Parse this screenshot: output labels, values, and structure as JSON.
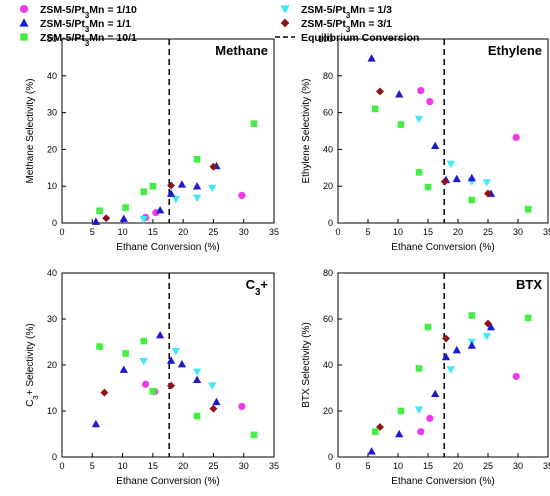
{
  "legend": {
    "entries": [
      {
        "key": "s1",
        "text": "ZSM-5/Pt₃Mn = 1/10",
        "marker": "circle"
      },
      {
        "key": "s2",
        "text": "ZSM-5/Pt₃Mn = 1/3",
        "marker": "triangle-down"
      },
      {
        "key": "s3",
        "text": "ZSM-5/Pt₃Mn = 1/1",
        "marker": "triangle-up"
      },
      {
        "key": "s4",
        "text": "ZSM-5/Pt₃Mn = 3/1",
        "marker": "diamond"
      },
      {
        "key": "s5",
        "text": "ZSM-5/Pt₃Mn = 10/1",
        "marker": "square"
      },
      {
        "key": "eq",
        "text": "Equilibrium Conversion",
        "marker": "dashed-line"
      }
    ]
  },
  "colors": {
    "s1": "#f038e8",
    "s2": "#3ee8f5",
    "s3": "#1a1ad0",
    "s4": "#8b1418",
    "s5": "#44ee44",
    "eq": "#000000"
  },
  "chart_data": [
    {
      "type": "scatter",
      "id": "methane",
      "title": "Methane",
      "xlabel": "Ethane Conversion (%)",
      "ylabel": "Methane Selectivity (%)",
      "xlim": [
        0,
        35
      ],
      "ylim": [
        0,
        50
      ],
      "xticks": [
        0,
        5,
        10,
        15,
        20,
        25,
        30,
        35
      ],
      "yticks": [
        0,
        10,
        20,
        30,
        40,
        50
      ],
      "equilibrium_x": 17.7,
      "series": [
        {
          "key": "s1",
          "points": [
            [
              13.8,
              1.5
            ],
            [
              15.5,
              2.8
            ],
            [
              29.7,
              7.5
            ]
          ]
        },
        {
          "key": "s2",
          "points": [
            [
              13.5,
              1.0
            ],
            [
              18.8,
              6.5
            ],
            [
              22.3,
              6.8
            ],
            [
              24.8,
              9.5
            ]
          ]
        },
        {
          "key": "s3",
          "points": [
            [
              5.6,
              0.4
            ],
            [
              10.2,
              1.2
            ],
            [
              16.2,
              3.5
            ],
            [
              18.0,
              8.0
            ],
            [
              19.8,
              10.5
            ],
            [
              22.3,
              10.0
            ],
            [
              25.5,
              15.5
            ]
          ]
        },
        {
          "key": "s4",
          "points": [
            [
              7.3,
              1.3
            ],
            [
              18.0,
              10.2
            ],
            [
              25.0,
              15.3
            ]
          ]
        },
        {
          "key": "s5",
          "points": [
            [
              6.2,
              3.3
            ],
            [
              10.5,
              4.2
            ],
            [
              13.5,
              8.5
            ],
            [
              15.0,
              10.0
            ],
            [
              22.3,
              17.3
            ],
            [
              31.7,
              27.0
            ]
          ]
        }
      ]
    },
    {
      "type": "scatter",
      "id": "ethylene",
      "title": "Ethylene",
      "xlabel": "Ethane Conversion (%)",
      "ylabel": "Ethylene Selectivity (%)",
      "xlim": [
        0,
        35
      ],
      "ylim": [
        0,
        100
      ],
      "xticks": [
        0,
        5,
        10,
        15,
        20,
        25,
        30,
        35
      ],
      "yticks": [
        0,
        20,
        40,
        60,
        80,
        100
      ],
      "equilibrium_x": 17.7,
      "series": [
        {
          "key": "s1",
          "points": [
            [
              13.8,
              72.0
            ],
            [
              15.3,
              66.0
            ],
            [
              29.7,
              46.5
            ]
          ]
        },
        {
          "key": "s2",
          "points": [
            [
              13.5,
              56.5
            ],
            [
              18.8,
              32.0
            ],
            [
              22.3,
              22.5
            ],
            [
              24.8,
              22.0
            ]
          ]
        },
        {
          "key": "s3",
          "points": [
            [
              5.6,
              89.5
            ],
            [
              10.2,
              70.0
            ],
            [
              16.2,
              42.0
            ],
            [
              18.0,
              23.5
            ],
            [
              19.8,
              24.0
            ],
            [
              22.3,
              24.5
            ],
            [
              25.5,
              16.0
            ]
          ]
        },
        {
          "key": "s4",
          "points": [
            [
              7.0,
              71.5
            ],
            [
              17.8,
              22.5
            ],
            [
              25.0,
              16.0
            ]
          ]
        },
        {
          "key": "s5",
          "points": [
            [
              6.2,
              62.0
            ],
            [
              10.5,
              53.5
            ],
            [
              13.5,
              27.5
            ],
            [
              15.0,
              19.5
            ],
            [
              22.3,
              12.5
            ],
            [
              31.7,
              7.5
            ]
          ]
        }
      ]
    },
    {
      "type": "scatter",
      "id": "c3plus",
      "title": "C₃+",
      "xlabel": "Ethane Conversion (%)",
      "ylabel": "C₃+ Selectivity (%)",
      "xlim": [
        0,
        35
      ],
      "ylim": [
        0,
        40
      ],
      "xticks": [
        0,
        5,
        10,
        15,
        20,
        25,
        30,
        35
      ],
      "yticks": [
        0,
        10,
        20,
        30,
        40
      ],
      "equilibrium_x": 17.7,
      "series": [
        {
          "key": "s1",
          "points": [
            [
              13.8,
              15.8
            ],
            [
              15.3,
              14.2
            ],
            [
              29.7,
              11.0
            ]
          ]
        },
        {
          "key": "s2",
          "points": [
            [
              13.5,
              20.8
            ],
            [
              18.8,
              23.0
            ],
            [
              22.3,
              18.5
            ],
            [
              24.8,
              15.5
            ]
          ]
        },
        {
          "key": "s3",
          "points": [
            [
              5.6,
              7.2
            ],
            [
              10.2,
              19.0
            ],
            [
              16.2,
              26.5
            ],
            [
              18.0,
              21.0
            ],
            [
              19.8,
              20.2
            ],
            [
              22.3,
              16.8
            ],
            [
              25.5,
              12.0
            ]
          ]
        },
        {
          "key": "s4",
          "points": [
            [
              7.0,
              14.0
            ],
            [
              18.0,
              15.5
            ],
            [
              25.0,
              10.5
            ]
          ]
        },
        {
          "key": "s5",
          "points": [
            [
              6.2,
              24.0
            ],
            [
              10.5,
              22.5
            ],
            [
              13.5,
              25.2
            ],
            [
              15.0,
              14.3
            ],
            [
              22.3,
              8.9
            ],
            [
              31.7,
              4.8
            ]
          ]
        }
      ]
    },
    {
      "type": "scatter",
      "id": "btx",
      "title": "BTX",
      "xlabel": "Ethane Conversion (%)",
      "ylabel": "BTX Selectivity (%)",
      "xlim": [
        0,
        35
      ],
      "ylim": [
        0,
        80
      ],
      "xticks": [
        0,
        5,
        10,
        15,
        20,
        25,
        30,
        35
      ],
      "yticks": [
        0,
        20,
        40,
        60,
        80
      ],
      "equilibrium_x": 17.7,
      "series": [
        {
          "key": "s1",
          "points": [
            [
              13.8,
              11.0
            ],
            [
              15.3,
              16.8
            ],
            [
              29.7,
              35.0
            ]
          ]
        },
        {
          "key": "s2",
          "points": [
            [
              13.5,
              20.5
            ],
            [
              18.8,
              38.0
            ],
            [
              22.3,
              50.0
            ],
            [
              24.8,
              52.5
            ]
          ]
        },
        {
          "key": "s3",
          "points": [
            [
              5.6,
              2.5
            ],
            [
              10.2,
              10.0
            ],
            [
              16.2,
              27.5
            ],
            [
              18.0,
              43.5
            ],
            [
              19.8,
              46.5
            ],
            [
              22.3,
              48.5
            ],
            [
              25.5,
              56.5
            ]
          ]
        },
        {
          "key": "s4",
          "points": [
            [
              7.0,
              13.0
            ],
            [
              18.0,
              51.5
            ],
            [
              25.0,
              58.0
            ]
          ]
        },
        {
          "key": "s5",
          "points": [
            [
              6.2,
              11.0
            ],
            [
              10.5,
              20.0
            ],
            [
              13.5,
              38.5
            ],
            [
              15.0,
              56.5
            ],
            [
              22.3,
              61.5
            ],
            [
              31.7,
              60.5
            ]
          ]
        }
      ]
    }
  ]
}
